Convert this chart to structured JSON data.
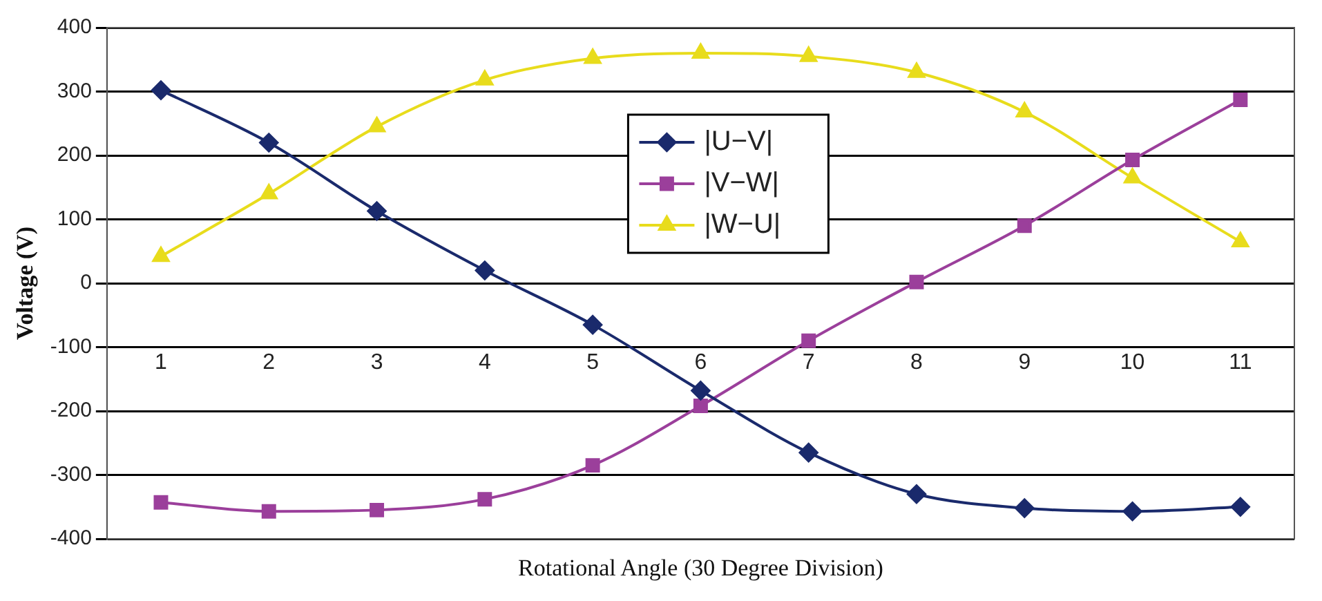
{
  "chart_data": {
    "type": "line",
    "xlabel": "Rotational Angle (30 Degree Division)",
    "ylabel": "Voltage (V)",
    "categories": [
      "1",
      "2",
      "3",
      "4",
      "5",
      "6",
      "7",
      "8",
      "9",
      "10",
      "11"
    ],
    "series": [
      {
        "name": "|U−V|",
        "color": "#1a2a6c",
        "marker": "diamond",
        "values": [
          302,
          220,
          113,
          20,
          -65,
          -168,
          -265,
          -330,
          -352,
          -357,
          -350
        ]
      },
      {
        "name": "|V−W|",
        "color": "#9b3f9b",
        "marker": "square",
        "values": [
          -343,
          -357,
          -355,
          -338,
          -285,
          -192,
          -90,
          2,
          90,
          193,
          287
        ]
      },
      {
        "name": "|W−U|",
        "color": "#e8dc1c",
        "marker": "triangle",
        "values": [
          42,
          140,
          245,
          318,
          352,
          360,
          355,
          330,
          268,
          165,
          65
        ]
      }
    ],
    "ylim": [
      -400,
      400
    ],
    "yticks": [
      -400,
      -300,
      -200,
      -100,
      0,
      100,
      200,
      300,
      400
    ],
    "grid": "y",
    "legend": "top center",
    "line_style": "solid"
  }
}
